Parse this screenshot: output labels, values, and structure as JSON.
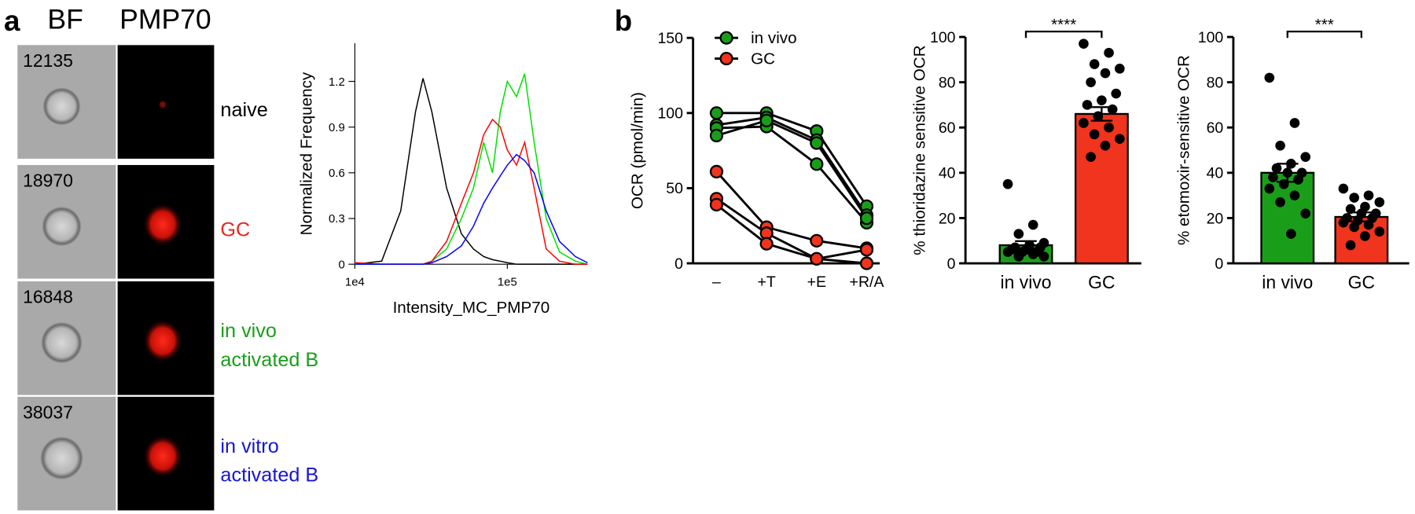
{
  "panel_a": {
    "label": "a",
    "columns": [
      "BF",
      "PMP70"
    ],
    "rows": [
      {
        "id": "12135",
        "label": [
          "naive"
        ],
        "color": "#000000"
      },
      {
        "id": "18970",
        "label": [
          "GC"
        ],
        "color": "#e8251b"
      },
      {
        "id": "16848",
        "label": [
          "in vivo",
          "activated B"
        ],
        "color": "#1a9e1a"
      },
      {
        "id": "38037",
        "label": [
          "in vitro",
          "activated B"
        ],
        "color": "#1515d6"
      }
    ]
  },
  "panel_b": {
    "label": "b"
  },
  "chart_data": [
    {
      "type": "line",
      "xscale": "log",
      "xlabel": "Intensity_MC_PMP70",
      "ylabel": "Normalized Frequency",
      "x": [
        10000,
        15000,
        20000,
        25000,
        28000,
        32000,
        40000,
        50000,
        60000,
        70000,
        80000,
        90000,
        100000,
        115000,
        130000,
        150000,
        180000,
        220000,
        280000,
        336000
      ],
      "xlim": [
        10000,
        336000
      ],
      "xticks": [
        {
          "value": 10000,
          "label": "1e4"
        },
        {
          "value": 100000,
          "label": "1e5"
        }
      ],
      "ylim": [
        0,
        1.45
      ],
      "yticks": [
        0,
        0.3,
        0.6,
        0.9,
        1.2
      ],
      "series": [
        {
          "color": "#000000",
          "values": [
            0,
            0.02,
            0.35,
            1.0,
            1.22,
            1.0,
            0.5,
            0.2,
            0.1,
            0.05,
            0.03,
            0.02,
            0.01,
            0,
            0,
            0,
            0,
            0,
            0,
            0
          ]
        },
        {
          "color": "#00e000",
          "values": [
            0,
            0,
            0,
            0,
            0,
            0.02,
            0.1,
            0.3,
            0.5,
            0.8,
            0.6,
            1.0,
            1.2,
            1.1,
            1.25,
            0.8,
            0.3,
            0.08,
            0.02,
            0
          ]
        },
        {
          "color": "#ff0000",
          "values": [
            0.01,
            0,
            0,
            0,
            0,
            0.02,
            0.15,
            0.4,
            0.6,
            0.85,
            0.95,
            0.9,
            0.75,
            0.65,
            0.8,
            0.5,
            0.1,
            0.02,
            0,
            0
          ]
        },
        {
          "color": "#0000ff",
          "values": [
            0,
            0,
            0,
            0,
            0,
            0.01,
            0.05,
            0.12,
            0.25,
            0.4,
            0.5,
            0.58,
            0.65,
            0.72,
            0.68,
            0.6,
            0.35,
            0.15,
            0.05,
            0.01
          ]
        }
      ]
    },
    {
      "type": "line",
      "ylabel": "OCR  (pmol/min)",
      "categories": [
        "–",
        "+T",
        "+E",
        "+R/A"
      ],
      "ylim": [
        0,
        150
      ],
      "yticks": [
        0,
        50,
        100,
        150
      ],
      "series": [
        {
          "name": "in vivo",
          "color": "#1a9e1a",
          "values": [
            [
              100,
              100,
              88,
              38
            ],
            [
              92,
              97,
              82,
              32
            ],
            [
              90,
              91,
              66,
              27
            ],
            [
              85,
              95,
              80,
              30
            ]
          ]
        },
        {
          "name": "GC",
          "color": "#f0341d",
          "values": [
            [
              61,
              24,
              15,
              10
            ],
            [
              43,
              20,
              3,
              0
            ],
            [
              39,
              13,
              3,
              9
            ]
          ]
        }
      ]
    },
    {
      "type": "bar",
      "ylabel": "% thioridazine sensitive OCR",
      "categories": [
        "in vivo",
        "GC"
      ],
      "colors": [
        "#1a9e1a",
        "#f0341d"
      ],
      "values": [
        8,
        66
      ],
      "errors": [
        1.8,
        3
      ],
      "points": [
        [
          35,
          17,
          13,
          9,
          8,
          7,
          7,
          6,
          6,
          5,
          5,
          5,
          4,
          3,
          3
        ],
        [
          97,
          93,
          88,
          86,
          84,
          80,
          75,
          72,
          70,
          68,
          65,
          62,
          60,
          57,
          55,
          52,
          47
        ]
      ],
      "significance": "****",
      "ylim": [
        0,
        100
      ],
      "yticks": [
        0,
        20,
        40,
        60,
        80,
        100
      ]
    },
    {
      "type": "bar",
      "ylabel": "% etomoxir-sensitive OCR",
      "categories": [
        "in vivo",
        "GC"
      ],
      "colors": [
        "#1a9e1a",
        "#f0341d"
      ],
      "values": [
        40,
        20.5
      ],
      "errors": [
        4,
        2
      ],
      "points": [
        [
          82,
          62,
          52,
          47,
          44,
          42,
          40,
          40,
          38,
          37,
          35,
          33,
          30,
          27,
          22,
          13
        ],
        [
          33,
          30,
          29,
          27,
          25,
          24,
          22,
          22,
          20,
          20,
          19,
          18,
          17,
          16,
          14,
          12,
          8
        ]
      ],
      "significance": "***",
      "ylim": [
        0,
        100
      ],
      "yticks": [
        0,
        20,
        40,
        60,
        80,
        100
      ]
    }
  ]
}
